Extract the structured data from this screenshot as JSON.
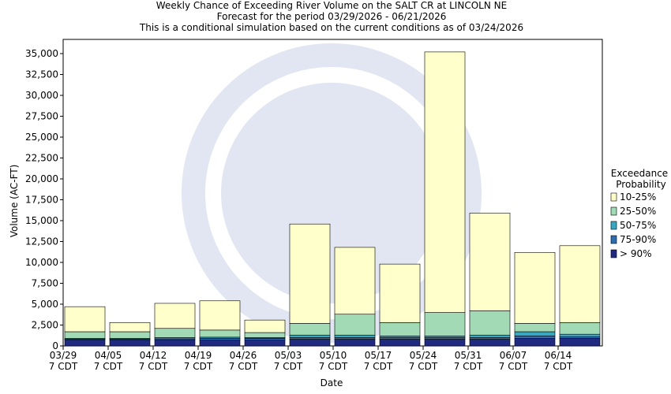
{
  "chart_data": {
    "type": "stacked_bar",
    "title": [
      "Weekly Chance of Exceeding River Volume on the SALT CR at LINCOLN NE",
      "Forecast for the period 03/29/2026 - 06/21/2026",
      "This is a conditional simulation based on the current conditions as of 03/24/2026"
    ],
    "x_label": "Date",
    "y_label": "Volume (AC-FT)",
    "legend_title": [
      "Exceedance",
      "Probability"
    ],
    "categories": [
      [
        "03/29",
        "7 CDT"
      ],
      [
        "04/05",
        "7 CDT"
      ],
      [
        "04/12",
        "7 CDT"
      ],
      [
        "04/19",
        "7 CDT"
      ],
      [
        "04/26",
        "7 CDT"
      ],
      [
        "05/03",
        "7 CDT"
      ],
      [
        "05/10",
        "7 CDT"
      ],
      [
        "05/17",
        "7 CDT"
      ],
      [
        "05/24",
        "7 CDT"
      ],
      [
        "05/31",
        "7 CDT"
      ],
      [
        "06/07",
        "7 CDT"
      ],
      [
        "06/14",
        "7 CDT"
      ]
    ],
    "series": [
      {
        "name": "> 90%",
        "color": "#1f2a80",
        "values": [
          700,
          700,
          700,
          700,
          700,
          800,
          800,
          800,
          800,
          800,
          900,
          900
        ]
      },
      {
        "name": "75-90%",
        "color": "#2f6db0",
        "values": [
          100,
          100,
          150,
          200,
          200,
          200,
          200,
          200,
          200,
          200,
          300,
          200
        ]
      },
      {
        "name": "50-75%",
        "color": "#3aa7c2",
        "values": [
          100,
          100,
          150,
          150,
          100,
          300,
          300,
          200,
          200,
          300,
          500,
          300
        ]
      },
      {
        "name": "25-50%",
        "color": "#a1dab4",
        "values": [
          800,
          800,
          1100,
          850,
          600,
          1400,
          2500,
          1600,
          2800,
          2900,
          1000,
          1400
        ]
      },
      {
        "name": "10-25%",
        "color": "#ffffcc",
        "values": [
          3000,
          1100,
          3000,
          3500,
          1500,
          11900,
          8000,
          7000,
          31200,
          11700,
          8500,
          9200
        ]
      }
    ],
    "ylim": [
      0,
      36700
    ],
    "yticks": [
      0,
      {
        "value": 2500,
        "label": "2,500"
      },
      {
        "value": 5000,
        "label": "5,000"
      },
      {
        "value": 7500,
        "label": "7,500"
      },
      {
        "value": 10000,
        "label": "10,000"
      },
      {
        "value": 12500,
        "label": "12,500"
      },
      {
        "value": 15000,
        "label": "15,000"
      },
      {
        "value": 17500,
        "label": "17,500"
      },
      {
        "value": 20000,
        "label": "20,000"
      },
      {
        "value": 22500,
        "label": "22,500"
      },
      {
        "value": 25000,
        "label": "25,000"
      },
      {
        "value": 27500,
        "label": "27,500"
      },
      {
        "value": 30000,
        "label": "30,000"
      },
      {
        "value": 32500,
        "label": "32,500"
      },
      {
        "value": 35000,
        "label": "35,000"
      }
    ]
  }
}
